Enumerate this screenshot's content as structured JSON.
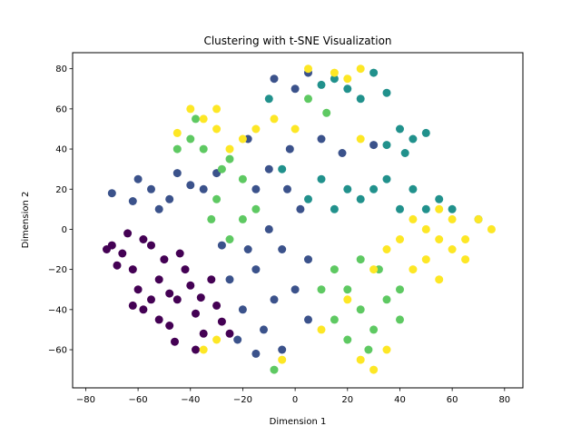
{
  "chart_data": {
    "type": "scatter",
    "title": "Clustering with t-SNE Visualization",
    "xlabel": "Dimension 1",
    "ylabel": "Dimension 2",
    "xlim": [
      -85,
      87
    ],
    "ylim": [
      -79,
      88
    ],
    "xticks": [
      -80,
      -60,
      -40,
      -20,
      0,
      20,
      40,
      60,
      80
    ],
    "yticks": [
      -60,
      -40,
      -20,
      0,
      20,
      40,
      60,
      80
    ],
    "xtick_labels": [
      "−80",
      "−60",
      "−40",
      "−20",
      "0",
      "20",
      "40",
      "60",
      "80"
    ],
    "ytick_labels": [
      "−60",
      "−40",
      "−20",
      "0",
      "20",
      "40",
      "60",
      "80"
    ],
    "grid": false,
    "legend": false,
    "colors": {
      "cluster_dark_purple": "#440154",
      "cluster_blue": "#3b528b",
      "cluster_teal": "#21918c",
      "cluster_green": "#5ec962",
      "cluster_yellow": "#fde725"
    },
    "series": [
      {
        "color": "#440154",
        "points": [
          [
            -66,
            -12
          ],
          [
            -58,
            -5
          ],
          [
            -62,
            -20
          ],
          [
            -52,
            -25
          ],
          [
            -45,
            -35
          ],
          [
            -48,
            -48
          ],
          [
            -38,
            -42
          ],
          [
            -30,
            -38
          ],
          [
            -40,
            -28
          ],
          [
            -55,
            -35
          ],
          [
            -70,
            -8
          ],
          [
            -64,
            -2
          ],
          [
            -50,
            -15
          ],
          [
            -42,
            -20
          ],
          [
            -35,
            -52
          ],
          [
            -28,
            -46
          ],
          [
            -58,
            -40
          ],
          [
            -46,
            -56
          ],
          [
            -32,
            -25
          ],
          [
            -60,
            -30
          ],
          [
            -72,
            -10
          ],
          [
            -52,
            -45
          ],
          [
            -38,
            -60
          ],
          [
            -44,
            -12
          ],
          [
            -25,
            -52
          ],
          [
            -55,
            -8
          ],
          [
            -68,
            -18
          ],
          [
            -48,
            -32
          ],
          [
            -36,
            -34
          ],
          [
            -62,
            -38
          ]
        ]
      },
      {
        "color": "#3b528b",
        "points": [
          [
            -55,
            20
          ],
          [
            -60,
            25
          ],
          [
            -48,
            15
          ],
          [
            -40,
            22
          ],
          [
            -52,
            10
          ],
          [
            -62,
            14
          ],
          [
            -70,
            18
          ],
          [
            -45,
            28
          ],
          [
            -35,
            20
          ],
          [
            -30,
            28
          ],
          [
            -15,
            20
          ],
          [
            -10,
            30
          ],
          [
            -10,
            0
          ],
          [
            -5,
            -10
          ],
          [
            -15,
            -20
          ],
          [
            -8,
            -35
          ],
          [
            -12,
            -50
          ],
          [
            -5,
            -60
          ],
          [
            -20,
            -40
          ],
          [
            -18,
            -10
          ],
          [
            -25,
            -25
          ],
          [
            0,
            -30
          ],
          [
            5,
            -15
          ],
          [
            2,
            10
          ],
          [
            -3,
            20
          ],
          [
            -8,
            75
          ],
          [
            0,
            70
          ],
          [
            5,
            78
          ],
          [
            -15,
            -62
          ],
          [
            -22,
            -55
          ],
          [
            5,
            -45
          ],
          [
            -28,
            -8
          ],
          [
            -2,
            40
          ],
          [
            -18,
            45
          ],
          [
            18,
            38
          ],
          [
            30,
            42
          ],
          [
            10,
            45
          ]
        ]
      },
      {
        "color": "#21918c",
        "points": [
          [
            15,
            75
          ],
          [
            20,
            70
          ],
          [
            25,
            65
          ],
          [
            30,
            78
          ],
          [
            10,
            72
          ],
          [
            45,
            45
          ],
          [
            40,
            50
          ],
          [
            35,
            42
          ],
          [
            50,
            48
          ],
          [
            20,
            20
          ],
          [
            25,
            15
          ],
          [
            30,
            20
          ],
          [
            35,
            25
          ],
          [
            45,
            20
          ],
          [
            50,
            10
          ],
          [
            55,
            15
          ],
          [
            60,
            10
          ],
          [
            70,
            5
          ],
          [
            40,
            10
          ],
          [
            15,
            10
          ],
          [
            -5,
            30
          ],
          [
            5,
            15
          ],
          [
            -10,
            65
          ],
          [
            35,
            68
          ],
          [
            42,
            38
          ],
          [
            10,
            25
          ]
        ]
      },
      {
        "color": "#5ec962",
        "points": [
          [
            -25,
            35
          ],
          [
            -35,
            40
          ],
          [
            -20,
            25
          ],
          [
            -30,
            15
          ],
          [
            -40,
            45
          ],
          [
            -38,
            55
          ],
          [
            -28,
            30
          ],
          [
            -20,
            5
          ],
          [
            -25,
            -5
          ],
          [
            -15,
            10
          ],
          [
            15,
            -20
          ],
          [
            20,
            -30
          ],
          [
            25,
            -40
          ],
          [
            30,
            -50
          ],
          [
            20,
            -55
          ],
          [
            35,
            -35
          ],
          [
            40,
            -30
          ],
          [
            25,
            -15
          ],
          [
            10,
            -30
          ],
          [
            28,
            -60
          ],
          [
            40,
            -45
          ],
          [
            5,
            65
          ],
          [
            12,
            58
          ],
          [
            -45,
            40
          ],
          [
            -8,
            -70
          ],
          [
            15,
            -45
          ],
          [
            32,
            -20
          ],
          [
            -32,
            5
          ]
        ]
      },
      {
        "color": "#fde725",
        "points": [
          [
            -40,
            60
          ],
          [
            -35,
            55
          ],
          [
            -30,
            50
          ],
          [
            -20,
            45
          ],
          [
            -25,
            40
          ],
          [
            -15,
            50
          ],
          [
            -45,
            48
          ],
          [
            -30,
            60
          ],
          [
            50,
            0
          ],
          [
            55,
            -5
          ],
          [
            60,
            -10
          ],
          [
            65,
            -5
          ],
          [
            70,
            5
          ],
          [
            50,
            -15
          ],
          [
            45,
            -20
          ],
          [
            55,
            -25
          ],
          [
            65,
            -15
          ],
          [
            75,
            0
          ],
          [
            40,
            -5
          ],
          [
            35,
            -10
          ],
          [
            45,
            5
          ],
          [
            60,
            5
          ],
          [
            30,
            -20
          ],
          [
            20,
            -35
          ],
          [
            25,
            -65
          ],
          [
            30,
            -70
          ],
          [
            35,
            -60
          ],
          [
            10,
            -50
          ],
          [
            5,
            80
          ],
          [
            15,
            78
          ],
          [
            25,
            80
          ],
          [
            20,
            75
          ],
          [
            -30,
            -55
          ],
          [
            -35,
            -60
          ],
          [
            -5,
            -65
          ],
          [
            -8,
            55
          ],
          [
            25,
            45
          ],
          [
            0,
            50
          ],
          [
            55,
            10
          ]
        ]
      }
    ]
  }
}
